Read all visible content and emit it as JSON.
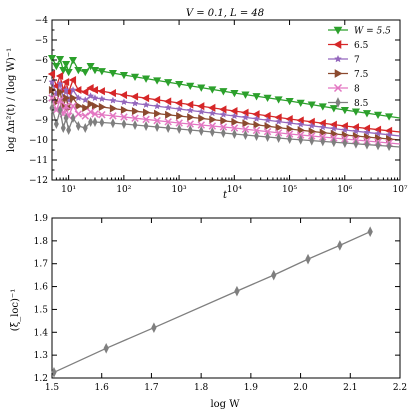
{
  "chart_data": [
    {
      "type": "line",
      "title": "V = 0.1, L = 48",
      "xlabel": "t",
      "ylabel": "log Δn²(t) / (log W)⁻¹",
      "xscale": "log",
      "xlim": [
        5,
        10000000
      ],
      "ylim": [
        -12,
        -4
      ],
      "xticks": [
        10,
        100,
        1000,
        10000,
        100000,
        1000000,
        10000000
      ],
      "xtick_labels": [
        "10¹",
        "10²",
        "10³",
        "10⁴",
        "10⁵",
        "10⁶",
        "10⁷"
      ],
      "yticks": [
        -12,
        -11,
        -10,
        -9,
        -8,
        -7,
        -6,
        -5,
        -4
      ],
      "ytick_labels": [
        "−12",
        "−11",
        "−10",
        "−9",
        "−8",
        "−7",
        "−6",
        "−5",
        "−4"
      ],
      "legend_position": "top-right",
      "legend_prefix": "W = ",
      "series": [
        {
          "name": "5.5",
          "color": "#2ca02c",
          "marker": "triangle-down",
          "points": [
            [
              5,
              -5.9
            ],
            [
              6,
              -6.3
            ],
            [
              7,
              -5.95
            ],
            [
              8,
              -6.5
            ],
            [
              9,
              -6.2
            ],
            [
              10,
              -6.6
            ],
            [
              12,
              -6.0
            ],
            [
              15,
              -6.5
            ],
            [
              20,
              -6.6
            ],
            [
              25,
              -6.3
            ],
            [
              30,
              -6.5
            ],
            [
              100,
              -6.75
            ],
            [
              1000,
              -7.2
            ],
            [
              10000,
              -7.65
            ],
            [
              100000,
              -8.05
            ],
            [
              1000000,
              -8.5
            ],
            [
              10000000,
              -8.9
            ]
          ]
        },
        {
          "name": "6.5",
          "color": "#d62728",
          "marker": "triangle-left",
          "points": [
            [
              5,
              -6.7
            ],
            [
              6,
              -7.3
            ],
            [
              7,
              -6.8
            ],
            [
              8,
              -7.5
            ],
            [
              9,
              -7.1
            ],
            [
              10,
              -7.6
            ],
            [
              12,
              -7.0
            ],
            [
              15,
              -7.5
            ],
            [
              20,
              -7.6
            ],
            [
              25,
              -7.4
            ],
            [
              30,
              -7.5
            ],
            [
              100,
              -7.75
            ],
            [
              1000,
              -8.15
            ],
            [
              10000,
              -8.55
            ],
            [
              100000,
              -8.95
            ],
            [
              1000000,
              -9.3
            ],
            [
              10000000,
              -9.6
            ]
          ]
        },
        {
          "name": "7",
          "color": "#9467bd",
          "marker": "star",
          "points": [
            [
              5,
              -7.1
            ],
            [
              6,
              -7.7
            ],
            [
              7,
              -7.2
            ],
            [
              8,
              -7.9
            ],
            [
              9,
              -7.5
            ],
            [
              10,
              -8.0
            ],
            [
              12,
              -7.5
            ],
            [
              15,
              -7.9
            ],
            [
              20,
              -8.0
            ],
            [
              25,
              -7.8
            ],
            [
              30,
              -7.9
            ],
            [
              100,
              -8.1
            ],
            [
              1000,
              -8.45
            ],
            [
              10000,
              -8.8
            ],
            [
              100000,
              -9.15
            ],
            [
              1000000,
              -9.5
            ],
            [
              10000000,
              -9.8
            ]
          ]
        },
        {
          "name": "7.5",
          "color": "#8c4a2f",
          "marker": "triangle-right",
          "points": [
            [
              5,
              -7.5
            ],
            [
              6,
              -8.1
            ],
            [
              7,
              -7.6
            ],
            [
              8,
              -8.3
            ],
            [
              9,
              -7.9
            ],
            [
              10,
              -8.4
            ],
            [
              12,
              -7.9
            ],
            [
              15,
              -8.3
            ],
            [
              20,
              -8.4
            ],
            [
              25,
              -8.2
            ],
            [
              30,
              -8.3
            ],
            [
              100,
              -8.5
            ],
            [
              1000,
              -8.8
            ],
            [
              10000,
              -9.1
            ],
            [
              100000,
              -9.45
            ],
            [
              1000000,
              -9.75
            ],
            [
              10000000,
              -10.0
            ]
          ]
        },
        {
          "name": "8",
          "color": "#e377c2",
          "marker": "x",
          "points": [
            [
              5,
              -7.9
            ],
            [
              6,
              -8.5
            ],
            [
              7,
              -8.0
            ],
            [
              8,
              -8.7
            ],
            [
              9,
              -8.3
            ],
            [
              10,
              -8.8
            ],
            [
              12,
              -8.3
            ],
            [
              15,
              -8.7
            ],
            [
              20,
              -8.8
            ],
            [
              25,
              -8.6
            ],
            [
              30,
              -8.7
            ],
            [
              100,
              -8.85
            ],
            [
              1000,
              -9.15
            ],
            [
              10000,
              -9.4
            ],
            [
              100000,
              -9.7
            ],
            [
              1000000,
              -9.95
            ],
            [
              10000000,
              -10.2
            ]
          ]
        },
        {
          "name": "8.5",
          "color": "#7f7f7f",
          "marker": "thin-diamond",
          "points": [
            [
              5,
              -8.4
            ],
            [
              6,
              -9.2
            ],
            [
              7,
              -8.5
            ],
            [
              8,
              -9.4
            ],
            [
              9,
              -8.9
            ],
            [
              10,
              -9.5
            ],
            [
              12,
              -8.9
            ],
            [
              15,
              -9.3
            ],
            [
              20,
              -9.4
            ],
            [
              25,
              -9.1
            ],
            [
              30,
              -9.1
            ],
            [
              100,
              -9.2
            ],
            [
              1000,
              -9.45
            ],
            [
              10000,
              -9.7
            ],
            [
              100000,
              -9.95
            ],
            [
              1000000,
              -10.15
            ],
            [
              10000000,
              -10.35
            ]
          ]
        }
      ]
    },
    {
      "type": "line",
      "title": "",
      "xlabel": "log W",
      "ylabel": "(ξ_loc)⁻¹",
      "xlim": [
        1.5,
        2.2
      ],
      "ylim": [
        1.2,
        1.9
      ],
      "xticks": [
        1.5,
        1.6,
        1.7,
        1.8,
        1.9,
        2.0,
        2.1,
        2.2
      ],
      "xtick_labels": [
        "1.5",
        "1.6",
        "1.7",
        "1.8",
        "1.9",
        "2.0",
        "2.1",
        "2.2"
      ],
      "yticks": [
        1.2,
        1.3,
        1.4,
        1.5,
        1.6,
        1.7,
        1.8,
        1.9
      ],
      "ytick_labels": [
        "1.2",
        "1.3",
        "1.4",
        "1.5",
        "1.6",
        "1.7",
        "1.8",
        "1.9"
      ],
      "series": [
        {
          "color": "#7f7f7f",
          "marker": "thin-diamond",
          "x": [
            1.504,
            1.609,
            1.705,
            1.872,
            1.946,
            2.015,
            2.079,
            2.14
          ],
          "y": [
            1.225,
            1.33,
            1.42,
            1.58,
            1.65,
            1.72,
            1.78,
            1.84
          ]
        }
      ]
    }
  ]
}
